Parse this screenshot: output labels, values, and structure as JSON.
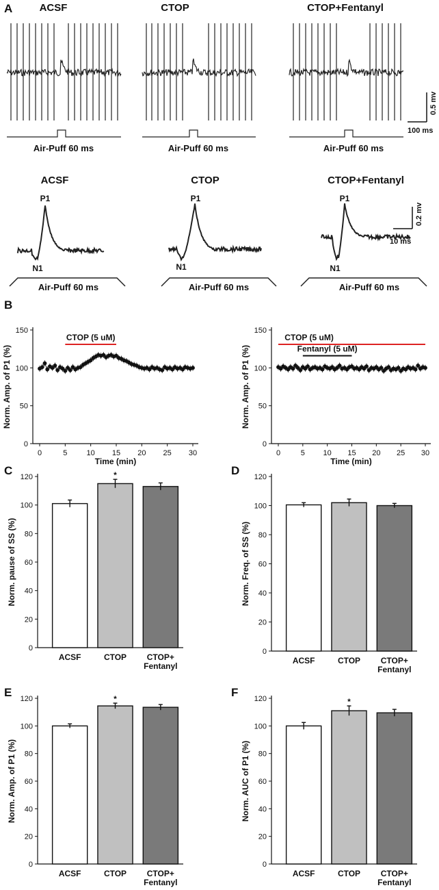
{
  "panels": {
    "a": "A",
    "b": "B",
    "c": "C",
    "d": "D",
    "e": "E",
    "f": "F"
  },
  "traces": {
    "conditions": [
      "ACSF",
      "CTOP",
      "CTOP+Fentanyl"
    ],
    "stimulus_label": "Air-Puff  60 ms",
    "peak_label": "P1",
    "trough_label": "N1",
    "scale_top": {
      "amplitude": "0.5 mv",
      "time": "100 ms"
    },
    "scale_bottom": {
      "amplitude": "0.2 mv",
      "time": "10 ms"
    }
  },
  "chart_data": [
    {
      "id": "B-left",
      "type": "scatter",
      "ylabel": "Norm. Amp. of P1 (%)",
      "xlabel": "Time (min)",
      "xlim": [
        0,
        30
      ],
      "ylim": [
        0,
        150
      ],
      "xticks": [
        "0",
        "5",
        "10",
        "15",
        "20",
        "25",
        "30"
      ],
      "yticks": [
        "0",
        "50",
        "100",
        "150"
      ],
      "bars_annot": [
        {
          "label": "CTOP (5 uM)",
          "from": 5,
          "to": 15,
          "color": "#dd2222"
        }
      ],
      "series": [
        {
          "name": "P1 amplitude",
          "color": "#111111",
          "points": [
            [
              0,
              99
            ],
            [
              0.5,
              101
            ],
            [
              1,
              106
            ],
            [
              1.5,
              98
            ],
            [
              2,
              102
            ],
            [
              2.5,
              100
            ],
            [
              3,
              103
            ],
            [
              3.5,
              97
            ],
            [
              4,
              101
            ],
            [
              4.5,
              99
            ],
            [
              5,
              96
            ],
            [
              5.5,
              100
            ],
            [
              6,
              97
            ],
            [
              6.5,
              101
            ],
            [
              7,
              98
            ],
            [
              7.5,
              100
            ],
            [
              8,
              101
            ],
            [
              8.5,
              104
            ],
            [
              9,
              106
            ],
            [
              9.5,
              108
            ],
            [
              10,
              110
            ],
            [
              10.5,
              113
            ],
            [
              11,
              115
            ],
            [
              11.5,
              117
            ],
            [
              12,
              116
            ],
            [
              12.5,
              117
            ],
            [
              13,
              114
            ],
            [
              13.5,
              116
            ],
            [
              14,
              117
            ],
            [
              14.5,
              115
            ],
            [
              15,
              116
            ],
            [
              15.5,
              113
            ],
            [
              16,
              112
            ],
            [
              16.5,
              110
            ],
            [
              17,
              109
            ],
            [
              17.5,
              107
            ],
            [
              18,
              105
            ],
            [
              18.5,
              104
            ],
            [
              19,
              103
            ],
            [
              19.5,
              101
            ],
            [
              20,
              100
            ],
            [
              20.5,
              99
            ],
            [
              21,
              100
            ],
            [
              21.5,
              98
            ],
            [
              22,
              101
            ],
            [
              22.5,
              99
            ],
            [
              23,
              100
            ],
            [
              23.5,
              98
            ],
            [
              24,
              97
            ],
            [
              24.5,
              101
            ],
            [
              25,
              99
            ],
            [
              25.5,
              100
            ],
            [
              26,
              98
            ],
            [
              26.5,
              101
            ],
            [
              27,
              99
            ],
            [
              27.5,
              100
            ],
            [
              28,
              98
            ],
            [
              28.5,
              101
            ],
            [
              29,
              100
            ],
            [
              29.5,
              99
            ],
            [
              30,
              100
            ]
          ]
        }
      ]
    },
    {
      "id": "B-right",
      "type": "scatter",
      "ylabel": "Norm. Amp. of P1 (%)",
      "xlabel": "Time (min)",
      "xlim": [
        0,
        30
      ],
      "ylim": [
        0,
        150
      ],
      "xticks": [
        "0",
        "5",
        "10",
        "15",
        "20",
        "25",
        "30"
      ],
      "yticks": [
        "0",
        "50",
        "100",
        "150"
      ],
      "bars_annot": [
        {
          "label": "CTOP (5 uM)",
          "from": 0,
          "to": 30,
          "color": "#dd2222"
        },
        {
          "label": "Fentanyl (5 uM)",
          "from": 5,
          "to": 15,
          "color": "#111111"
        }
      ],
      "series": [
        {
          "name": "P1 amplitude",
          "color": "#111111",
          "points": [
            [
              0,
              101
            ],
            [
              0.5,
              99
            ],
            [
              1,
              102
            ],
            [
              1.5,
              100
            ],
            [
              2,
              98
            ],
            [
              2.5,
              101
            ],
            [
              3,
              99
            ],
            [
              3.5,
              103
            ],
            [
              4,
              100
            ],
            [
              4.5,
              97
            ],
            [
              5,
              101
            ],
            [
              5.5,
              99
            ],
            [
              6,
              102
            ],
            [
              6.5,
              98
            ],
            [
              7,
              100
            ],
            [
              7.5,
              101
            ],
            [
              8,
              99
            ],
            [
              8.5,
              100
            ],
            [
              9,
              98
            ],
            [
              9.5,
              102
            ],
            [
              10,
              100
            ],
            [
              10.5,
              99
            ],
            [
              11,
              101
            ],
            [
              11.5,
              98
            ],
            [
              12,
              100
            ],
            [
              12.5,
              103
            ],
            [
              13,
              99
            ],
            [
              13.5,
              100
            ],
            [
              14,
              98
            ],
            [
              14.5,
              101
            ],
            [
              15,
              102
            ],
            [
              15.5,
              99
            ],
            [
              16,
              100
            ],
            [
              16.5,
              98
            ],
            [
              17,
              101
            ],
            [
              17.5,
              99
            ],
            [
              18,
              102
            ],
            [
              18.5,
              97
            ],
            [
              19,
              100
            ],
            [
              19.5,
              99
            ],
            [
              20,
              101
            ],
            [
              20.5,
              98
            ],
            [
              21,
              100
            ],
            [
              21.5,
              96
            ],
            [
              22,
              99
            ],
            [
              22.5,
              101
            ],
            [
              23,
              97
            ],
            [
              23.5,
              99
            ],
            [
              24,
              98
            ],
            [
              24.5,
              100
            ],
            [
              25,
              96
            ],
            [
              25.5,
              99
            ],
            [
              26,
              98
            ],
            [
              26.5,
              101
            ],
            [
              27,
              99
            ],
            [
              27.5,
              100
            ],
            [
              28,
              98
            ],
            [
              28.5,
              103
            ],
            [
              29,
              99
            ],
            [
              29.5,
              101
            ],
            [
              30,
              100
            ]
          ]
        }
      ]
    },
    {
      "id": "C",
      "type": "bar",
      "ylabel": "Norm. pause of SS (%)",
      "categories": [
        [
          "ACSF"
        ],
        [
          "CTOP"
        ],
        [
          "CTOP+",
          "Fentanyl"
        ]
      ],
      "values": [
        101,
        115,
        113
      ],
      "errors": [
        2.5,
        3,
        2.5
      ],
      "colors": [
        "#ffffff",
        "#c0c0c0",
        "#7a7a7a"
      ],
      "significance": [
        "",
        "*",
        ""
      ],
      "ylim": [
        0,
        120
      ],
      "yticks": [
        "0",
        "20",
        "40",
        "60",
        "80",
        "100",
        "120"
      ]
    },
    {
      "id": "D",
      "type": "bar",
      "ylabel": "Norm. Freq. of SS (%)",
      "categories": [
        [
          "ACSF"
        ],
        [
          "CTOP"
        ],
        [
          "CTOP+",
          "Fentanyl"
        ]
      ],
      "values": [
        100.5,
        102,
        100
      ],
      "errors": [
        1.5,
        2.5,
        1.5
      ],
      "colors": [
        "#ffffff",
        "#c0c0c0",
        "#7a7a7a"
      ],
      "significance": [
        "",
        "",
        ""
      ],
      "ylim": [
        0,
        120
      ],
      "yticks": [
        "0",
        "20",
        "40",
        "60",
        "80",
        "100",
        "120"
      ]
    },
    {
      "id": "E",
      "type": "bar",
      "ylabel": "Norm. Amp. of P1 (%)",
      "categories": [
        [
          "ACSF"
        ],
        [
          "CTOP"
        ],
        [
          "CTOP+",
          "Fentanyl"
        ]
      ],
      "values": [
        100,
        114.5,
        113.5
      ],
      "errors": [
        1.5,
        2,
        2
      ],
      "colors": [
        "#ffffff",
        "#c0c0c0",
        "#7a7a7a"
      ],
      "significance": [
        "",
        "*",
        ""
      ],
      "ylim": [
        0,
        120
      ],
      "yticks": [
        "0",
        "20",
        "40",
        "60",
        "80",
        "100",
        "120"
      ]
    },
    {
      "id": "F",
      "type": "bar",
      "ylabel": "Norm. AUC of P1 (%)",
      "categories": [
        [
          "ACSF"
        ],
        [
          "CTOP"
        ],
        [
          "CTOP+",
          "Fentanyl"
        ]
      ],
      "values": [
        100,
        111,
        109.5
      ],
      "errors": [
        2.5,
        3.5,
        2.5
      ],
      "colors": [
        "#ffffff",
        "#c0c0c0",
        "#7a7a7a"
      ],
      "significance": [
        "",
        "*",
        ""
      ],
      "ylim": [
        0,
        120
      ],
      "yticks": [
        "0",
        "20",
        "40",
        "60",
        "80",
        "100",
        "120"
      ]
    }
  ]
}
